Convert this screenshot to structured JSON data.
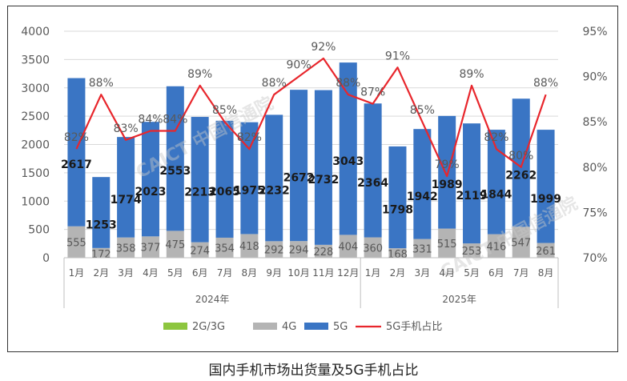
{
  "caption": "国内手机市场出货量及5G手机占比",
  "watermark": "CAICT 中国信通院",
  "colors": {
    "g2_3": "#8dc63f",
    "g4": "#b4b4b4",
    "g5": "#3a75c4",
    "share_line": "#e8262c",
    "axis_text": "#595959",
    "label_dark": "#1a1a1a",
    "label_light": "#595959",
    "grid": "#d9d9d9"
  },
  "chart_data": {
    "type": "bar",
    "stacked": true,
    "categories": [
      "1月",
      "2月",
      "3月",
      "4月",
      "5月",
      "6月",
      "7月",
      "8月",
      "9月",
      "10月",
      "11月",
      "12月",
      "1月",
      "2月",
      "3月",
      "4月",
      "5月",
      "6月",
      "7月",
      "8月"
    ],
    "year_groups": [
      {
        "label": "2024年",
        "start": 0,
        "end": 11
      },
      {
        "label": "2025年",
        "start": 12,
        "end": 19
      }
    ],
    "series": [
      {
        "name": "2G/3G",
        "values": [
          0,
          0,
          0,
          0,
          0,
          0,
          0,
          0,
          0,
          0,
          0,
          0,
          0,
          0,
          0,
          0,
          0,
          0,
          0,
          0
        ]
      },
      {
        "name": "4G",
        "values": [
          555,
          172,
          358,
          377,
          475,
          274,
          354,
          418,
          292,
          294,
          228,
          404,
          360,
          168,
          331,
          515,
          253,
          416,
          547,
          261
        ]
      },
      {
        "name": "5G",
        "values": [
          2617,
          1253,
          1774,
          2023,
          2553,
          2213,
          2065,
          1975,
          2232,
          2672,
          2732,
          3043,
          2364,
          1798,
          1942,
          1989,
          2119,
          1844,
          2262,
          1999
        ]
      },
      {
        "name": "5G手机占比",
        "axis": "right",
        "type": "line",
        "values": [
          82,
          88,
          83,
          84,
          84,
          89,
          85,
          82,
          88,
          90,
          92,
          88,
          87,
          91,
          85,
          79,
          89,
          82,
          80,
          88
        ]
      }
    ],
    "share_labels": [
      "82%",
      "88%",
      "83%",
      "84%",
      "84%",
      "89%",
      "85%",
      "82%",
      "88%",
      "90%",
      "92%",
      "88%",
      "87%",
      "91%",
      "85%",
      "79%",
      "89%",
      "82%",
      "80%",
      "88%"
    ],
    "y_left": {
      "min": 0,
      "max": 4000,
      "ticks": [
        "0",
        "500",
        "1000",
        "1500",
        "2000",
        "2500",
        "3000",
        "3500",
        "4000"
      ]
    },
    "y_right": {
      "min": 70,
      "max": 95,
      "ticks": [
        "70%",
        "75%",
        "80%",
        "85%",
        "90%",
        "95%"
      ]
    },
    "grid": true,
    "legend_position": "bottom"
  }
}
